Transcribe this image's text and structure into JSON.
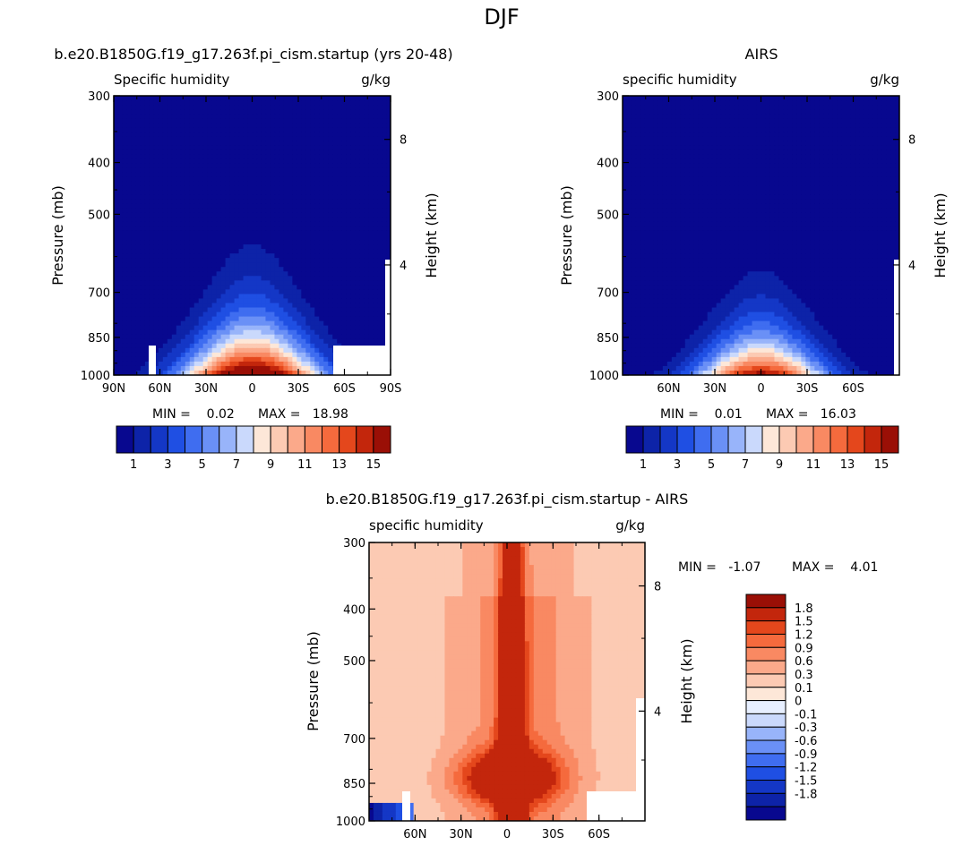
{
  "page_title": "DJF",
  "colors": {
    "ocean_blue": "#00008b",
    "white_mask": "#ffffff",
    "abs_palette": [
      "#08088f",
      "#0d23a8",
      "#1437c6",
      "#1f4fe3",
      "#3f6df0",
      "#6a90f6",
      "#98b4fa",
      "#cad9fc",
      "#fde7d8",
      "#fccab3",
      "#fba98a",
      "#f98962",
      "#f56a3d",
      "#e4471c",
      "#c3260c",
      "#9a0f06"
    ],
    "diff_palette": [
      "#08088f",
      "#0d23a8",
      "#1437c6",
      "#1f4fe3",
      "#3f6df0",
      "#6a90f6",
      "#98b4fa",
      "#cad9fc",
      "#e7efff",
      "#fde7d8",
      "#fccab3",
      "#fba98a",
      "#f98962",
      "#f56a3d",
      "#e4471c",
      "#c3260c",
      "#9a0f06"
    ]
  },
  "chart_data": [
    {
      "type": "heatmap",
      "title": "b.e20.B1850G.f19_g17.263f.pi_cism.startup (yrs 20-48)",
      "left_label": "Specific humidity",
      "unit_label": "g/kg",
      "ylabel": "Pressure (mb)",
      "ylabel_right": "Height (km)",
      "x_ticks": [
        "90N",
        "60N",
        "30N",
        "0",
        "30S",
        "60S",
        "90S"
      ],
      "x_range": [
        90,
        -90
      ],
      "y_ticks": [
        "300",
        "400",
        "500",
        "700",
        "850",
        "1000"
      ],
      "y_range": [
        300,
        1000
      ],
      "y_log": true,
      "right_ticks": [
        "8",
        "4"
      ],
      "min_text": "MIN =    0.02",
      "max_text": "MAX =   18.98",
      "min": 0.02,
      "max": 18.98,
      "colorbar_labels": [
        "1",
        "3",
        "5",
        "7",
        "9",
        "11",
        "13",
        "15"
      ],
      "colorbar_levels": [
        1,
        2,
        3,
        4,
        5,
        6,
        7,
        8,
        9,
        10,
        11,
        12,
        13,
        14,
        15
      ],
      "field": {
        "peak_lat": 0,
        "peak": 18.98,
        "lat_width": 30,
        "height_scale": 1.05,
        "sh_bias": 2
      }
    },
    {
      "type": "heatmap",
      "title": "AIRS",
      "left_label": "specific humidity",
      "unit_label": "g/kg",
      "ylabel": "Pressure (mb)",
      "ylabel_right": "Height (km)",
      "x_ticks": [
        "60N",
        "30N",
        "0",
        "30S",
        "60S"
      ],
      "x_range": [
        90,
        -90
      ],
      "y_ticks": [
        "300",
        "400",
        "500",
        "700",
        "850",
        "1000"
      ],
      "y_range": [
        300,
        1000
      ],
      "y_log": true,
      "right_ticks": [
        "8",
        "4"
      ],
      "min_text": "MIN =    0.01",
      "max_text": "MAX =   16.03",
      "min": 0.01,
      "max": 16.03,
      "colorbar_labels": [
        "1",
        "3",
        "5",
        "7",
        "9",
        "11",
        "13",
        "15"
      ],
      "colorbar_levels": [
        1,
        2,
        3,
        4,
        5,
        6,
        7,
        8,
        9,
        10,
        11,
        12,
        13,
        14,
        15
      ],
      "field": {
        "peak_lat": 0,
        "peak": 16.03,
        "lat_width": 28,
        "height_scale": 0.9,
        "sh_bias": 2
      }
    },
    {
      "type": "heatmap",
      "title": "b.e20.B1850G.f19_g17.263f.pi_cism.startup - AIRS",
      "left_label": "specific humidity",
      "unit_label": "g/kg",
      "ylabel": "Pressure (mb)",
      "ylabel_right": "Height (km)",
      "x_ticks": [
        "60N",
        "30N",
        "0",
        "30S",
        "60S"
      ],
      "x_range": [
        90,
        -90
      ],
      "y_ticks": [
        "300",
        "400",
        "500",
        "700",
        "850",
        "1000"
      ],
      "y_range": [
        300,
        1000
      ],
      "y_log": true,
      "right_ticks": [
        "8",
        "4"
      ],
      "min_text": "MIN =   -1.07",
      "max_text": "MAX =    4.01",
      "min": -1.07,
      "max": 4.01,
      "colorbar_labels": [
        "1.8",
        "1.5",
        "1.2",
        "0.9",
        "0.6",
        "0.3",
        "0.1",
        "0",
        "-0.1",
        "-0.3",
        "-0.6",
        "-0.9",
        "-1.2",
        "-1.5",
        "-1.8"
      ],
      "colorbar_levels": [
        -1.8,
        -1.5,
        -1.2,
        -0.9,
        -0.6,
        -0.3,
        -0.1,
        0,
        0.1,
        0.3,
        0.6,
        0.9,
        1.2,
        1.5,
        1.8
      ]
    }
  ]
}
